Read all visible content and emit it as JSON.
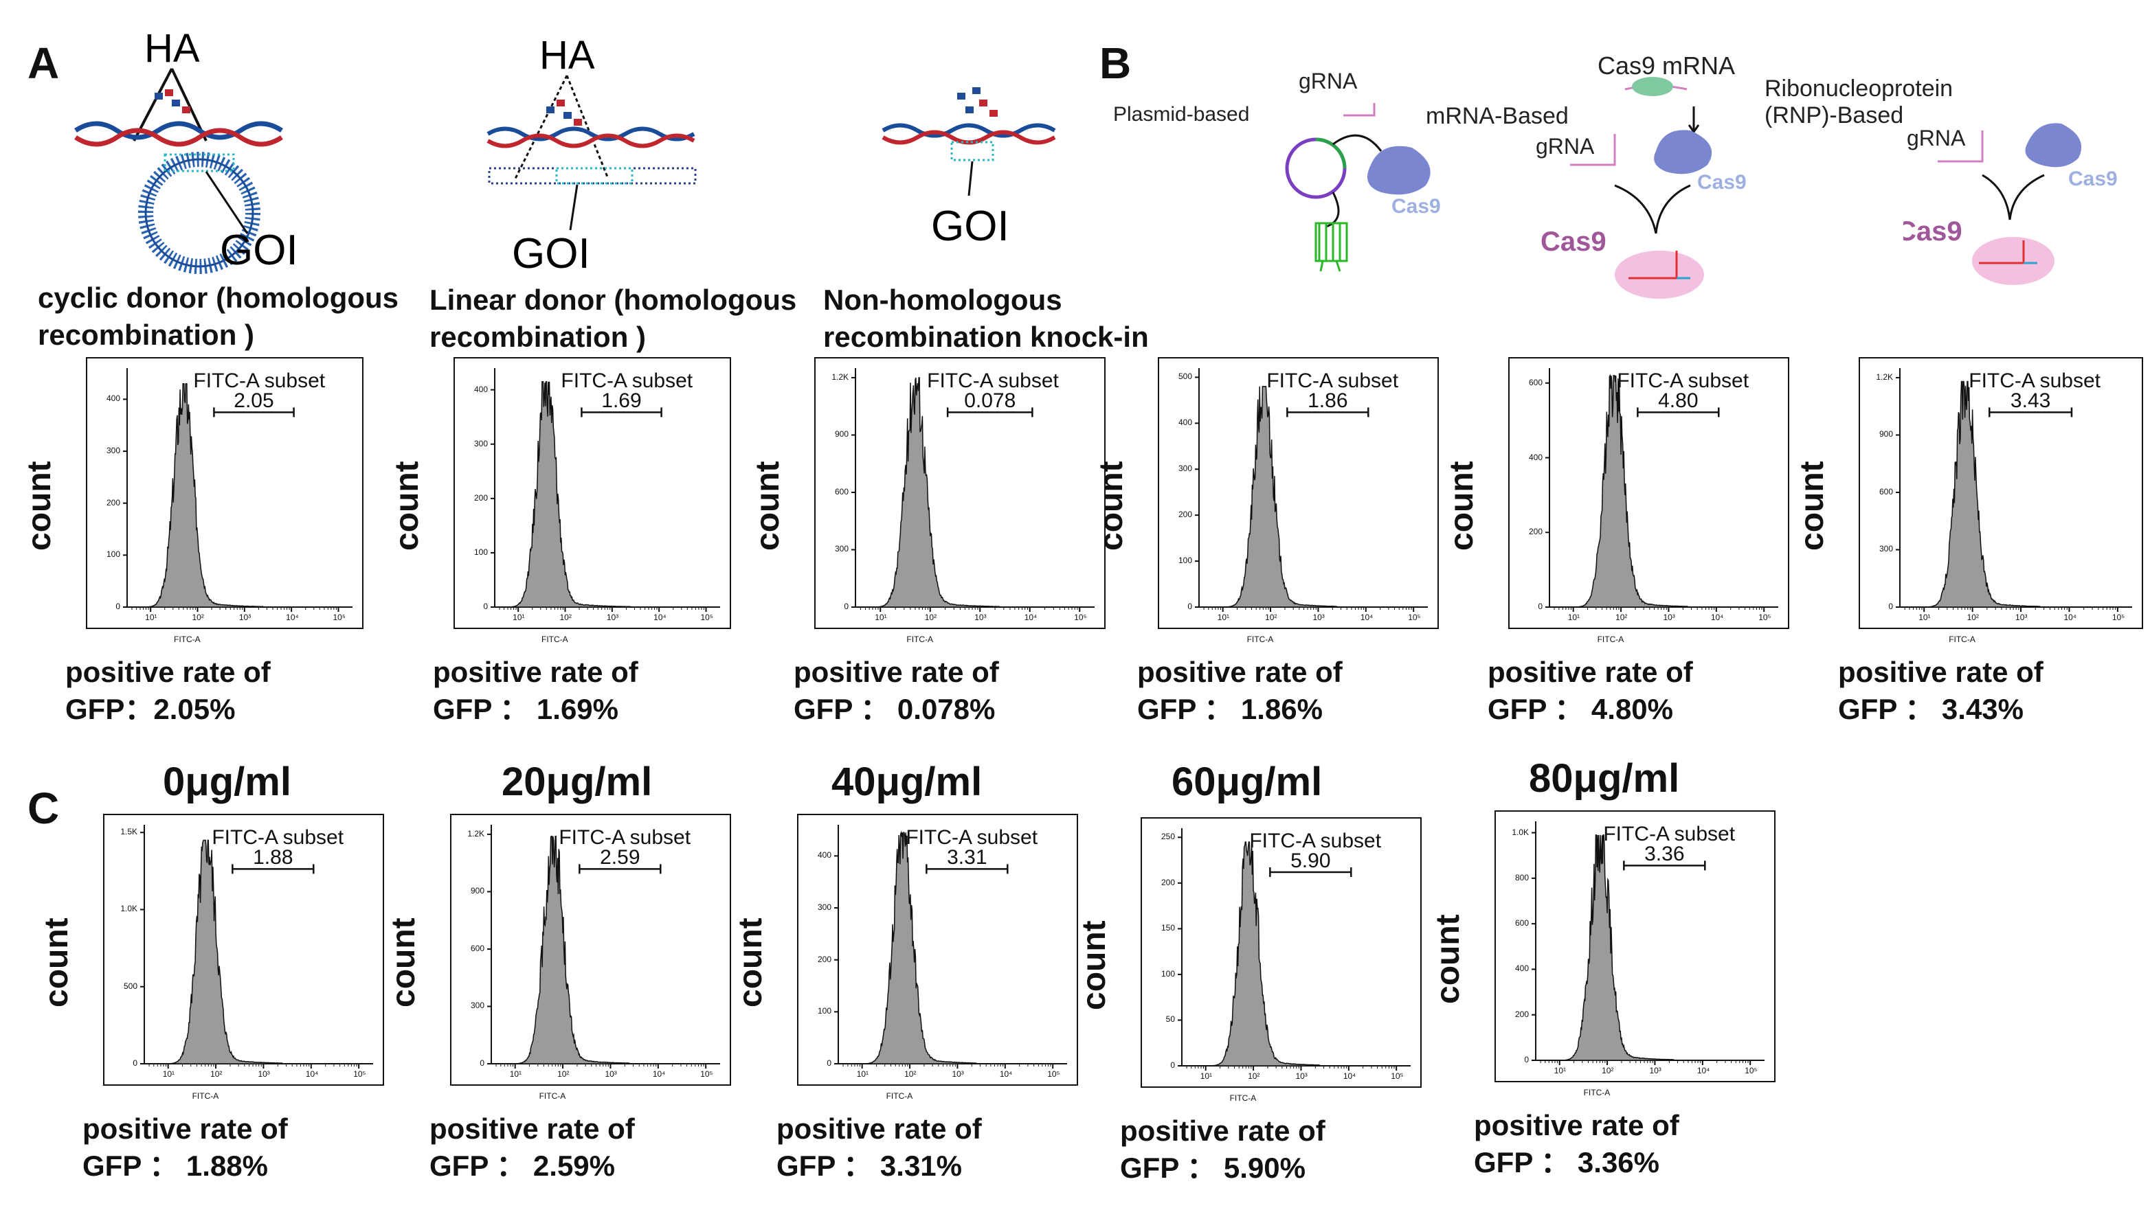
{
  "panels": {
    "a": "A",
    "b": "B",
    "c": "C"
  },
  "diagram_a": {
    "ha": "HA",
    "goi": "GOI",
    "captions": [
      [
        "cyclic donor (homologous",
        "recombination )"
      ],
      [
        "Linear donor (homologous",
        "recombination )"
      ],
      [
        "Non-homologous",
        "recombination knock-in"
      ]
    ]
  },
  "diagram_b": {
    "grna": "gRNA",
    "plasmid": "Plasmid-based",
    "mrna_based": "mRNA-Based",
    "cas9_mrna": "Cas9 mRNA",
    "rnp": [
      "Ribonucleoprotein",
      "(RNP)-Based"
    ],
    "cas9": "Cas9",
    "colors": {
      "cas9_protein": "#7b86d0",
      "cas9_text": "#9fb0e0",
      "cas9_bold": "#a0579a",
      "rna": "#d27fc0"
    }
  },
  "histogram_common": {
    "gate_label": "FITC-A subset",
    "x_axis": "FITC-A",
    "y_axis": "count",
    "x_ticks": [
      "10¹",
      "10²",
      "10³",
      "10⁴",
      "10⁵"
    ],
    "caption_line1": "positive rate of",
    "fill": "#9b9b9b"
  },
  "row1": [
    {
      "value": "2.05",
      "caption2": "GFP：2.05%",
      "yticks": [
        "0",
        "100",
        "200",
        "300",
        "400"
      ],
      "ymax": 460,
      "yvals": [
        0,
        100,
        200,
        300,
        400
      ],
      "peak": 430,
      "pos": 1.7
    },
    {
      "value": "1.69",
      "caption2": "GFP ： 1.69%",
      "yticks": [
        "0",
        "100",
        "200",
        "300",
        "400"
      ],
      "ymax": 440,
      "yvals": [
        0,
        100,
        200,
        300,
        400
      ],
      "peak": 415,
      "pos": 1.6
    },
    {
      "value": "0.078",
      "caption2": "GFP ： 0.078%",
      "yticks": [
        "0",
        "300",
        "600",
        "900",
        "1.2K"
      ],
      "ymax": 1250,
      "yvals": [
        0,
        300,
        600,
        900,
        1200
      ],
      "peak": 1200,
      "pos": 1.7
    },
    {
      "value": "1.86",
      "caption2": "GFP ： 1.86%",
      "yticks": [
        "0",
        "100",
        "200",
        "300",
        "400",
        "500"
      ],
      "ymax": 520,
      "yvals": [
        0,
        100,
        200,
        300,
        400,
        500
      ],
      "peak": 480,
      "pos": 1.85
    },
    {
      "value": "4.80",
      "caption2": "GFP ： 4.80%",
      "yticks": [
        "0",
        "200",
        "400",
        "600"
      ],
      "ymax": 640,
      "yvals": [
        0,
        200,
        400,
        600
      ],
      "peak": 620,
      "pos": 1.85
    },
    {
      "value": "3.43",
      "caption2": "GFP ： 3.43%",
      "yticks": [
        "0",
        "300",
        "600",
        "900",
        "1.2K"
      ],
      "ymax": 1250,
      "yvals": [
        0,
        300,
        600,
        900,
        1200
      ],
      "peak": 1180,
      "pos": 1.85
    }
  ],
  "row2": [
    {
      "dose": "0μg/ml",
      "value": "1.88",
      "caption2": "GFP ： 1.88%",
      "yticks": [
        "0",
        "500",
        "1.0K",
        "1.5K"
      ],
      "ymax": 1550,
      "yvals": [
        0,
        500,
        1000,
        1500
      ],
      "peak": 1450,
      "pos": 1.8
    },
    {
      "dose": "20μg/ml",
      "value": "2.59",
      "caption2": "GFP ： 2.59%",
      "yticks": [
        "0",
        "300",
        "600",
        "900",
        "1.2K"
      ],
      "ymax": 1250,
      "yvals": [
        0,
        300,
        600,
        900,
        1200
      ],
      "peak": 1190,
      "pos": 1.8
    },
    {
      "dose": "40μg/ml",
      "value": "3.31",
      "caption2": "GFP ： 3.31%",
      "yticks": [
        "0",
        "100",
        "200",
        "300",
        "400"
      ],
      "ymax": 460,
      "yvals": [
        0,
        100,
        200,
        300,
        400
      ],
      "peak": 445,
      "pos": 1.85
    },
    {
      "dose": "60μg/ml",
      "value": "5.90",
      "caption2": "GFP ： 5.90%",
      "yticks": [
        "0",
        "50",
        "100",
        "150",
        "200",
        "250"
      ],
      "ymax": 260,
      "yvals": [
        0,
        50,
        100,
        150,
        200,
        250
      ],
      "peak": 245,
      "pos": 1.9
    },
    {
      "dose": "80μg/ml",
      "value": "3.36",
      "caption2": "GFP ： 3.36%",
      "yticks": [
        "0",
        "200",
        "400",
        "600",
        "800",
        "1.0K"
      ],
      "ymax": 1050,
      "yvals": [
        0,
        200,
        400,
        600,
        800,
        1000
      ],
      "peak": 990,
      "pos": 1.85
    }
  ],
  "chart_data": {
    "type": "histogram",
    "x_axis": "FITC-A",
    "y_axis": "count",
    "x_scale": "log",
    "gate": "FITC-A subset",
    "panels": [
      {
        "group": "A",
        "condition": "cyclic donor (homologous recombination )",
        "positive_rate": 2.05
      },
      {
        "group": "A",
        "condition": "Linear donor (homologous recombination )",
        "positive_rate": 1.69
      },
      {
        "group": "A",
        "condition": "Non-homologous recombination knock-in",
        "positive_rate": 0.078
      },
      {
        "group": "B",
        "condition": "Plasmid-based",
        "positive_rate": 1.86
      },
      {
        "group": "B",
        "condition": "mRNA-Based",
        "positive_rate": 4.8
      },
      {
        "group": "B",
        "condition": "Ribonucleoprotein (RNP)-Based",
        "positive_rate": 3.43
      },
      {
        "group": "C",
        "condition": "0μg/ml",
        "positive_rate": 1.88
      },
      {
        "group": "C",
        "condition": "20μg/ml",
        "positive_rate": 2.59
      },
      {
        "group": "C",
        "condition": "40μg/ml",
        "positive_rate": 3.31
      },
      {
        "group": "C",
        "condition": "60μg/ml",
        "positive_rate": 5.9
      },
      {
        "group": "C",
        "condition": "80μg/ml",
        "positive_rate": 3.36
      }
    ]
  }
}
